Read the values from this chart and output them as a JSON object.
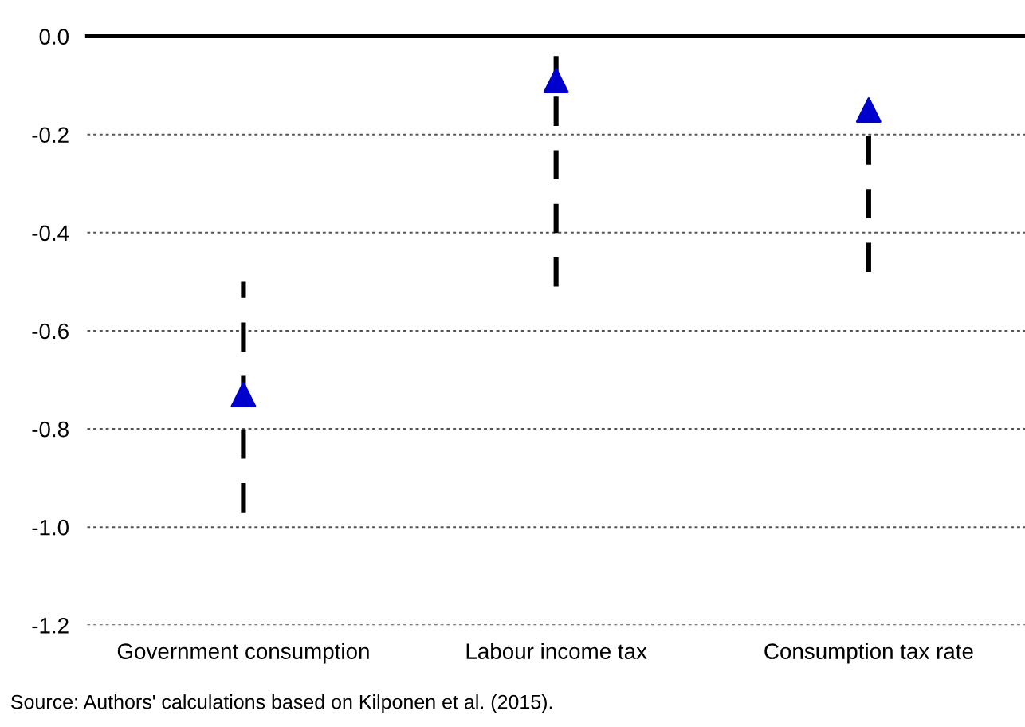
{
  "chart_data": {
    "type": "scatter",
    "categories": [
      "Government consumption",
      "Labour income tax",
      "Consumption tax rate"
    ],
    "series": [
      {
        "color": "#0000cc",
        "values": [
          -0.73,
          -0.09,
          -0.15
        ],
        "errors": [
          [
            -0.97,
            -0.5
          ],
          [
            -0.51,
            -0.04
          ],
          [
            -0.48,
            -0.15
          ]
        ]
      }
    ],
    "marker": "triangle",
    "line_style": "dashed",
    "ylim": [
      -1.2,
      0.0
    ],
    "yticks": [
      {
        "value": 0.0,
        "label": "0.0"
      },
      -0.2,
      -0.4,
      -0.6,
      -0.8,
      {
        "value": -1.0,
        "label": "-1.0"
      },
      -1.2
    ],
    "grid": "y",
    "legend": false,
    "annotations": [
      "Source: Authors' calculations based on Kilponen et al. (2015)."
    ]
  }
}
